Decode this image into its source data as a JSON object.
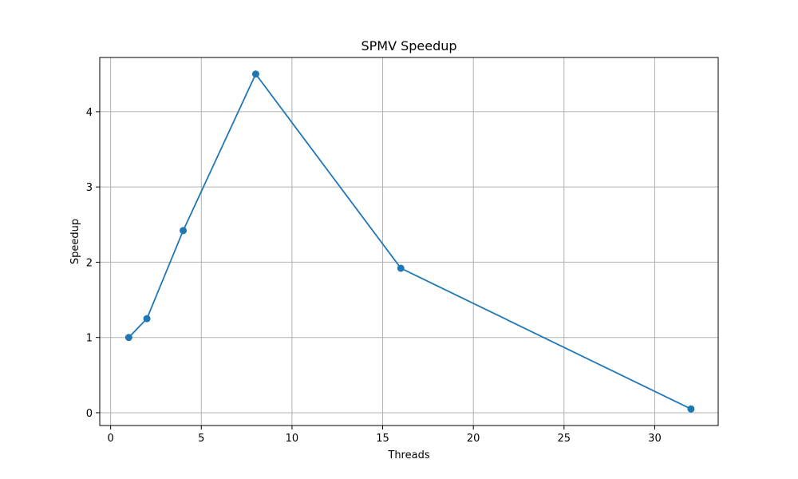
{
  "chart_data": {
    "type": "line",
    "title": "SPMV Speedup",
    "xlabel": "Threads",
    "ylabel": "Speedup",
    "xlim": [
      -0.6,
      33.5
    ],
    "ylim": [
      -0.17,
      4.72
    ],
    "xticks": [
      0,
      5,
      10,
      15,
      20,
      25,
      30
    ],
    "yticks": [
      0,
      1,
      2,
      3,
      4
    ],
    "grid": true,
    "series": [
      {
        "x": [
          1,
          2,
          4,
          8,
          16,
          32
        ],
        "values": [
          1.0,
          1.25,
          2.42,
          4.5,
          1.92,
          0.05
        ],
        "color": "#1f77b4",
        "marker": "circle"
      }
    ]
  }
}
